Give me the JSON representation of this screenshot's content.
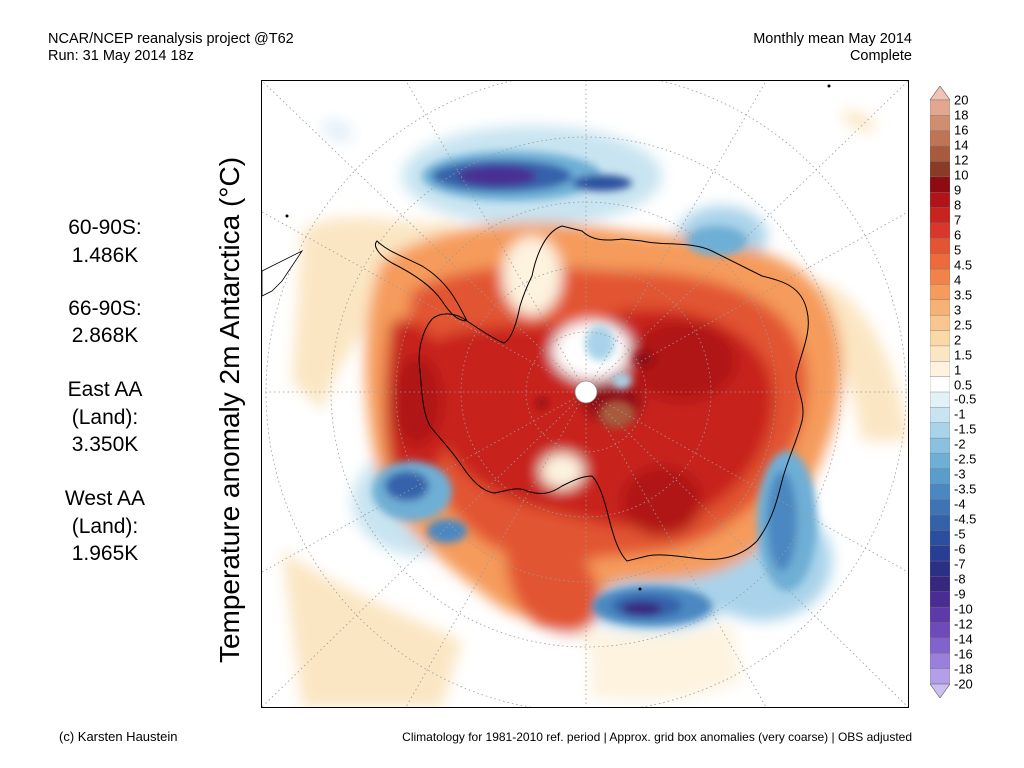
{
  "header": {
    "line1": "NCAR/NCEP reanalysis project @T62",
    "line2": "Run: 31 May 2014 18z",
    "right1": "Monthly mean May 2014",
    "right2": "Complete"
  },
  "axis_title": "Temperature anomaly 2m Antarctica (°C)",
  "stats": {
    "s1": "60-90S:",
    "v1": "1.486K",
    "s2": "66-90S:",
    "v2": "2.868K",
    "s3a": "East AA",
    "s3b": "(Land):",
    "v3": "3.350K",
    "s4a": "West AA",
    "s4b": "(Land):",
    "v4": "1.965K"
  },
  "colorbar": {
    "labels": [
      "20",
      "18",
      "16",
      "14",
      "12",
      "10",
      "9",
      "8",
      "7",
      "6",
      "5",
      "4.5",
      "4",
      "3.5",
      "3",
      "2.5",
      "2",
      "1.5",
      "1",
      "0.5",
      "-0.5",
      "-1",
      "-1.5",
      "-2",
      "-2.5",
      "-3",
      "-3.5",
      "-4",
      "-4.5",
      "-5",
      "-6",
      "-7",
      "-8",
      "-9",
      "-10",
      "-12",
      "-14",
      "-16",
      "-18",
      "-20"
    ],
    "colors": [
      "#f3c4b4",
      "#e2a88f",
      "#d18d70",
      "#bf7455",
      "#a85a3d",
      "#8a3b26",
      "#8e0b12",
      "#b01419",
      "#c8241f",
      "#d8372b",
      "#e25433",
      "#ec6b3d",
      "#f1834a",
      "#f59b5c",
      "#f7b174",
      "#f9c68f",
      "#fad8a8",
      "#fbe6c3",
      "#fdf3df",
      "#ffffff",
      "#e2f0f8",
      "#c8e4f1",
      "#a9d3ea",
      "#8bc1e0",
      "#6eafd6",
      "#5a9ccc",
      "#4b88c1",
      "#3e74b5",
      "#3462aa",
      "#2b4f9e",
      "#293e93",
      "#2c2f86",
      "#37277f",
      "#4a2d93",
      "#5c3aa7",
      "#6e4bbb",
      "#8262cc",
      "#9a7fdb",
      "#b39fe7",
      "#cbbef1"
    ]
  },
  "footer": {
    "left": "(c) Karsten Haustein",
    "right": "Climatology for 1981-2010 ref. period | Approx. grid box anomalies (very coarse) | OBS adjusted"
  }
}
